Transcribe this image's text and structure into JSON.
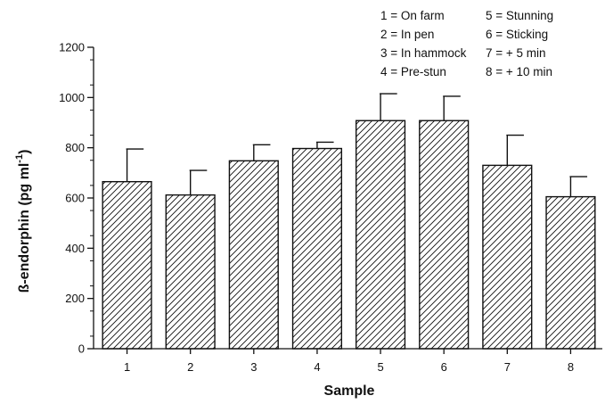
{
  "chart_data": {
    "type": "bar",
    "categories": [
      "1",
      "2",
      "3",
      "4",
      "5",
      "6",
      "7",
      "8"
    ],
    "values": [
      665,
      612,
      748,
      797,
      908,
      908,
      730,
      605
    ],
    "error_upper": [
      795,
      710,
      812,
      822,
      1015,
      1005,
      850,
      685
    ],
    "xlabel": "Sample",
    "ylabel": "ß-endorphin (pg ml",
    "ylabel_exponent": "-1",
    "ylabel_suffix": ")",
    "ylim": [
      0,
      1200
    ],
    "yticks": [
      "0",
      "200",
      "400",
      "600",
      "800",
      "1000",
      "1200"
    ],
    "grid": false,
    "bar_fill": "diagonal-hatch",
    "legend_position": "top-right",
    "legend": [
      "1 = On farm",
      "2 = In pen",
      "3 = In hammock",
      "4 = Pre-stun",
      "5 = Stunning",
      "6 = Sticking",
      "7 = + 5 min",
      "8 = + 10 min"
    ]
  }
}
